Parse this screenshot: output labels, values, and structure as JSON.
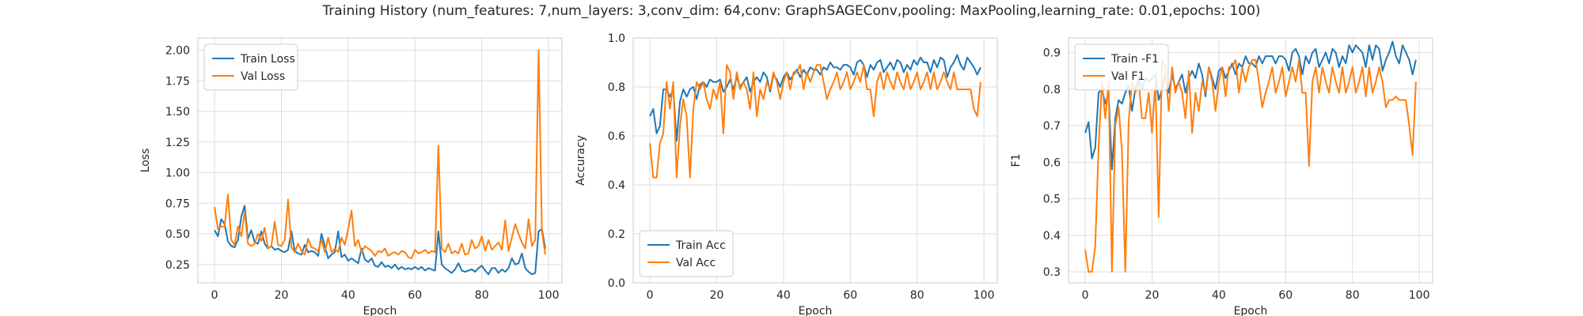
{
  "suptitle": "Training History (num_features: 7,num_layers: 3,conv_dim: 64,conv: GraphSAGEConv,pooling: MaxPooling,learning_rate: 0.01,epochs: 100)",
  "colors": {
    "series_1": "#1f77b4",
    "series_2": "#ff7f0e",
    "grid": "#dddddd",
    "spine": "#cccccc"
  },
  "chart_data": [
    {
      "type": "line",
      "xlabel": "Epoch",
      "ylabel": "Loss",
      "xlim": [
        -5,
        104
      ],
      "ylim": [
        0.1,
        2.1
      ],
      "xticks": [
        0,
        20,
        40,
        60,
        80,
        100
      ],
      "yticks": [
        0.25,
        0.5,
        0.75,
        1.0,
        1.25,
        1.5,
        1.75,
        2.0
      ],
      "yticklabels": [
        "0.25",
        "0.50",
        "0.75",
        "1.00",
        "1.25",
        "1.50",
        "1.75",
        "2.00"
      ],
      "xticklabels": [
        "0",
        "20",
        "40",
        "60",
        "80",
        "100"
      ],
      "legend": "top-left",
      "series": [
        {
          "name": "Train Loss",
          "color": "#1f77b4",
          "values": [
            0.53,
            0.48,
            0.62,
            0.58,
            0.44,
            0.4,
            0.39,
            0.45,
            0.64,
            0.73,
            0.46,
            0.53,
            0.43,
            0.42,
            0.52,
            0.42,
            0.38,
            0.4,
            0.37,
            0.38,
            0.36,
            0.35,
            0.37,
            0.52,
            0.36,
            0.34,
            0.33,
            0.41,
            0.35,
            0.36,
            0.35,
            0.32,
            0.5,
            0.4,
            0.3,
            0.33,
            0.35,
            0.52,
            0.31,
            0.33,
            0.28,
            0.3,
            0.28,
            0.26,
            0.38,
            0.29,
            0.27,
            0.3,
            0.24,
            0.23,
            0.27,
            0.23,
            0.24,
            0.22,
            0.25,
            0.21,
            0.23,
            0.21,
            0.22,
            0.21,
            0.23,
            0.21,
            0.23,
            0.2,
            0.22,
            0.21,
            0.2,
            0.52,
            0.25,
            0.22,
            0.2,
            0.18,
            0.21,
            0.26,
            0.2,
            0.19,
            0.2,
            0.21,
            0.19,
            0.22,
            0.24,
            0.2,
            0.17,
            0.22,
            0.22,
            0.18,
            0.21,
            0.19,
            0.22,
            0.3,
            0.25,
            0.26,
            0.34,
            0.22,
            0.19,
            0.17,
            0.18,
            0.52,
            0.54,
            0.38
          ]
        },
        {
          "name": "Val Loss",
          "color": "#ff7f0e",
          "values": [
            0.72,
            0.54,
            0.56,
            0.56,
            0.82,
            0.45,
            0.41,
            0.56,
            0.48,
            0.68,
            0.42,
            0.4,
            0.42,
            0.5,
            0.44,
            0.55,
            0.38,
            0.4,
            0.6,
            0.41,
            0.4,
            0.45,
            0.78,
            0.39,
            0.35,
            0.42,
            0.36,
            0.33,
            0.46,
            0.39,
            0.38,
            0.36,
            0.45,
            0.35,
            0.47,
            0.35,
            0.38,
            0.35,
            0.47,
            0.41,
            0.54,
            0.69,
            0.4,
            0.45,
            0.35,
            0.4,
            0.38,
            0.36,
            0.32,
            0.36,
            0.35,
            0.38,
            0.32,
            0.34,
            0.35,
            0.33,
            0.36,
            0.35,
            0.31,
            0.3,
            0.37,
            0.34,
            0.35,
            0.37,
            0.34,
            0.36,
            0.35,
            1.22,
            0.38,
            0.35,
            0.42,
            0.34,
            0.36,
            0.34,
            0.42,
            0.33,
            0.34,
            0.45,
            0.38,
            0.4,
            0.48,
            0.36,
            0.45,
            0.37,
            0.4,
            0.43,
            0.37,
            0.61,
            0.36,
            0.47,
            0.58,
            0.5,
            0.43,
            0.38,
            0.62,
            0.4,
            0.45,
            2.0,
            0.52,
            0.33
          ]
        }
      ]
    },
    {
      "type": "line",
      "xlabel": "Epoch",
      "ylabel": "Accuracy",
      "xlim": [
        -5,
        104
      ],
      "ylim": [
        0.0,
        1.0
      ],
      "xticks": [
        0,
        20,
        40,
        60,
        80,
        100
      ],
      "yticks": [
        0.0,
        0.2,
        0.4,
        0.6,
        0.8,
        1.0
      ],
      "yticklabels": [
        "0.0",
        "0.2",
        "0.4",
        "0.6",
        "0.8",
        "1.0"
      ],
      "xticklabels": [
        "0",
        "20",
        "40",
        "60",
        "80",
        "100"
      ],
      "legend": "bottom-left",
      "series": [
        {
          "name": "Train Acc",
          "color": "#1f77b4",
          "values": [
            0.68,
            0.71,
            0.61,
            0.64,
            0.79,
            0.79,
            0.76,
            0.79,
            0.58,
            0.74,
            0.79,
            0.76,
            0.79,
            0.8,
            0.75,
            0.81,
            0.82,
            0.8,
            0.83,
            0.82,
            0.82,
            0.83,
            0.78,
            0.8,
            0.83,
            0.79,
            0.84,
            0.8,
            0.82,
            0.84,
            0.78,
            0.82,
            0.84,
            0.82,
            0.86,
            0.84,
            0.78,
            0.85,
            0.83,
            0.8,
            0.84,
            0.86,
            0.83,
            0.85,
            0.87,
            0.84,
            0.87,
            0.85,
            0.88,
            0.87,
            0.87,
            0.85,
            0.88,
            0.87,
            0.9,
            0.88,
            0.88,
            0.87,
            0.89,
            0.89,
            0.88,
            0.85,
            0.9,
            0.91,
            0.89,
            0.84,
            0.89,
            0.87,
            0.9,
            0.91,
            0.86,
            0.88,
            0.9,
            0.87,
            0.91,
            0.9,
            0.86,
            0.89,
            0.87,
            0.91,
            0.89,
            0.92,
            0.9,
            0.9,
            0.86,
            0.91,
            0.88,
            0.92,
            0.91,
            0.84,
            0.88,
            0.9,
            0.93,
            0.89,
            0.87,
            0.92,
            0.9,
            0.88,
            0.85,
            0.88
          ]
        },
        {
          "name": "Val Acc",
          "color": "#ff7f0e",
          "values": [
            0.57,
            0.43,
            0.43,
            0.57,
            0.61,
            0.82,
            0.71,
            0.82,
            0.43,
            0.64,
            0.75,
            0.68,
            0.43,
            0.71,
            0.82,
            0.79,
            0.82,
            0.75,
            0.71,
            0.79,
            0.75,
            0.82,
            0.61,
            0.89,
            0.86,
            0.75,
            0.86,
            0.79,
            0.82,
            0.79,
            0.71,
            0.86,
            0.68,
            0.79,
            0.75,
            0.82,
            0.79,
            0.86,
            0.82,
            0.75,
            0.82,
            0.86,
            0.79,
            0.86,
            0.86,
            0.89,
            0.79,
            0.86,
            0.82,
            0.86,
            0.89,
            0.89,
            0.82,
            0.75,
            0.79,
            0.82,
            0.86,
            0.79,
            0.82,
            0.86,
            0.79,
            0.82,
            0.86,
            0.82,
            0.89,
            0.79,
            0.79,
            0.68,
            0.82,
            0.86,
            0.79,
            0.86,
            0.82,
            0.79,
            0.86,
            0.82,
            0.79,
            0.86,
            0.79,
            0.82,
            0.86,
            0.79,
            0.82,
            0.86,
            0.79,
            0.86,
            0.79,
            0.82,
            0.86,
            0.82,
            0.79,
            0.86,
            0.79,
            0.79,
            0.79,
            0.79,
            0.79,
            0.71,
            0.68,
            0.82
          ]
        }
      ]
    },
    {
      "type": "line",
      "xlabel": "Epoch",
      "ylabel": "F1",
      "xlim": [
        -5,
        104
      ],
      "ylim": [
        0.27,
        0.94
      ],
      "xticks": [
        0,
        20,
        40,
        60,
        80,
        100
      ],
      "yticks": [
        0.3,
        0.4,
        0.5,
        0.6,
        0.7,
        0.8,
        0.9
      ],
      "yticklabels": [
        "0.3",
        "0.4",
        "0.5",
        "0.6",
        "0.7",
        "0.8",
        "0.9"
      ],
      "xticklabels": [
        "0",
        "20",
        "40",
        "60",
        "80",
        "100"
      ],
      "legend": "top-left",
      "series": [
        {
          "name": "Train -F1",
          "color": "#1f77b4",
          "values": [
            0.68,
            0.71,
            0.61,
            0.64,
            0.79,
            0.8,
            0.76,
            0.79,
            0.58,
            0.72,
            0.77,
            0.76,
            0.79,
            0.81,
            0.74,
            0.8,
            0.83,
            0.8,
            0.83,
            0.82,
            0.83,
            0.84,
            0.77,
            0.8,
            0.84,
            0.79,
            0.84,
            0.8,
            0.82,
            0.84,
            0.79,
            0.83,
            0.85,
            0.83,
            0.87,
            0.84,
            0.78,
            0.86,
            0.83,
            0.8,
            0.85,
            0.86,
            0.83,
            0.85,
            0.87,
            0.84,
            0.87,
            0.86,
            0.89,
            0.87,
            0.87,
            0.86,
            0.89,
            0.87,
            0.89,
            0.89,
            0.89,
            0.87,
            0.89,
            0.89,
            0.88,
            0.85,
            0.9,
            0.91,
            0.89,
            0.84,
            0.89,
            0.87,
            0.9,
            0.91,
            0.86,
            0.88,
            0.9,
            0.87,
            0.91,
            0.9,
            0.86,
            0.89,
            0.87,
            0.92,
            0.9,
            0.92,
            0.91,
            0.9,
            0.86,
            0.92,
            0.88,
            0.92,
            0.91,
            0.85,
            0.88,
            0.9,
            0.93,
            0.89,
            0.87,
            0.92,
            0.9,
            0.88,
            0.84,
            0.88
          ]
        },
        {
          "name": "Val F1",
          "color": "#ff7f0e",
          "values": [
            0.36,
            0.3,
            0.3,
            0.37,
            0.64,
            0.82,
            0.72,
            0.82,
            0.3,
            0.7,
            0.75,
            0.63,
            0.3,
            0.71,
            0.82,
            0.79,
            0.82,
            0.72,
            0.72,
            0.79,
            0.68,
            0.82,
            0.45,
            0.88,
            0.86,
            0.74,
            0.86,
            0.79,
            0.82,
            0.79,
            0.72,
            0.85,
            0.68,
            0.79,
            0.74,
            0.82,
            0.79,
            0.86,
            0.82,
            0.74,
            0.82,
            0.86,
            0.78,
            0.86,
            0.86,
            0.88,
            0.79,
            0.86,
            0.82,
            0.86,
            0.88,
            0.88,
            0.82,
            0.75,
            0.79,
            0.82,
            0.86,
            0.79,
            0.82,
            0.86,
            0.78,
            0.82,
            0.86,
            0.82,
            0.88,
            0.79,
            0.79,
            0.59,
            0.82,
            0.86,
            0.79,
            0.86,
            0.82,
            0.79,
            0.86,
            0.82,
            0.79,
            0.86,
            0.79,
            0.82,
            0.86,
            0.79,
            0.82,
            0.86,
            0.78,
            0.86,
            0.79,
            0.82,
            0.86,
            0.82,
            0.75,
            0.77,
            0.77,
            0.78,
            0.77,
            0.77,
            0.77,
            0.7,
            0.62,
            0.82
          ]
        }
      ]
    }
  ]
}
